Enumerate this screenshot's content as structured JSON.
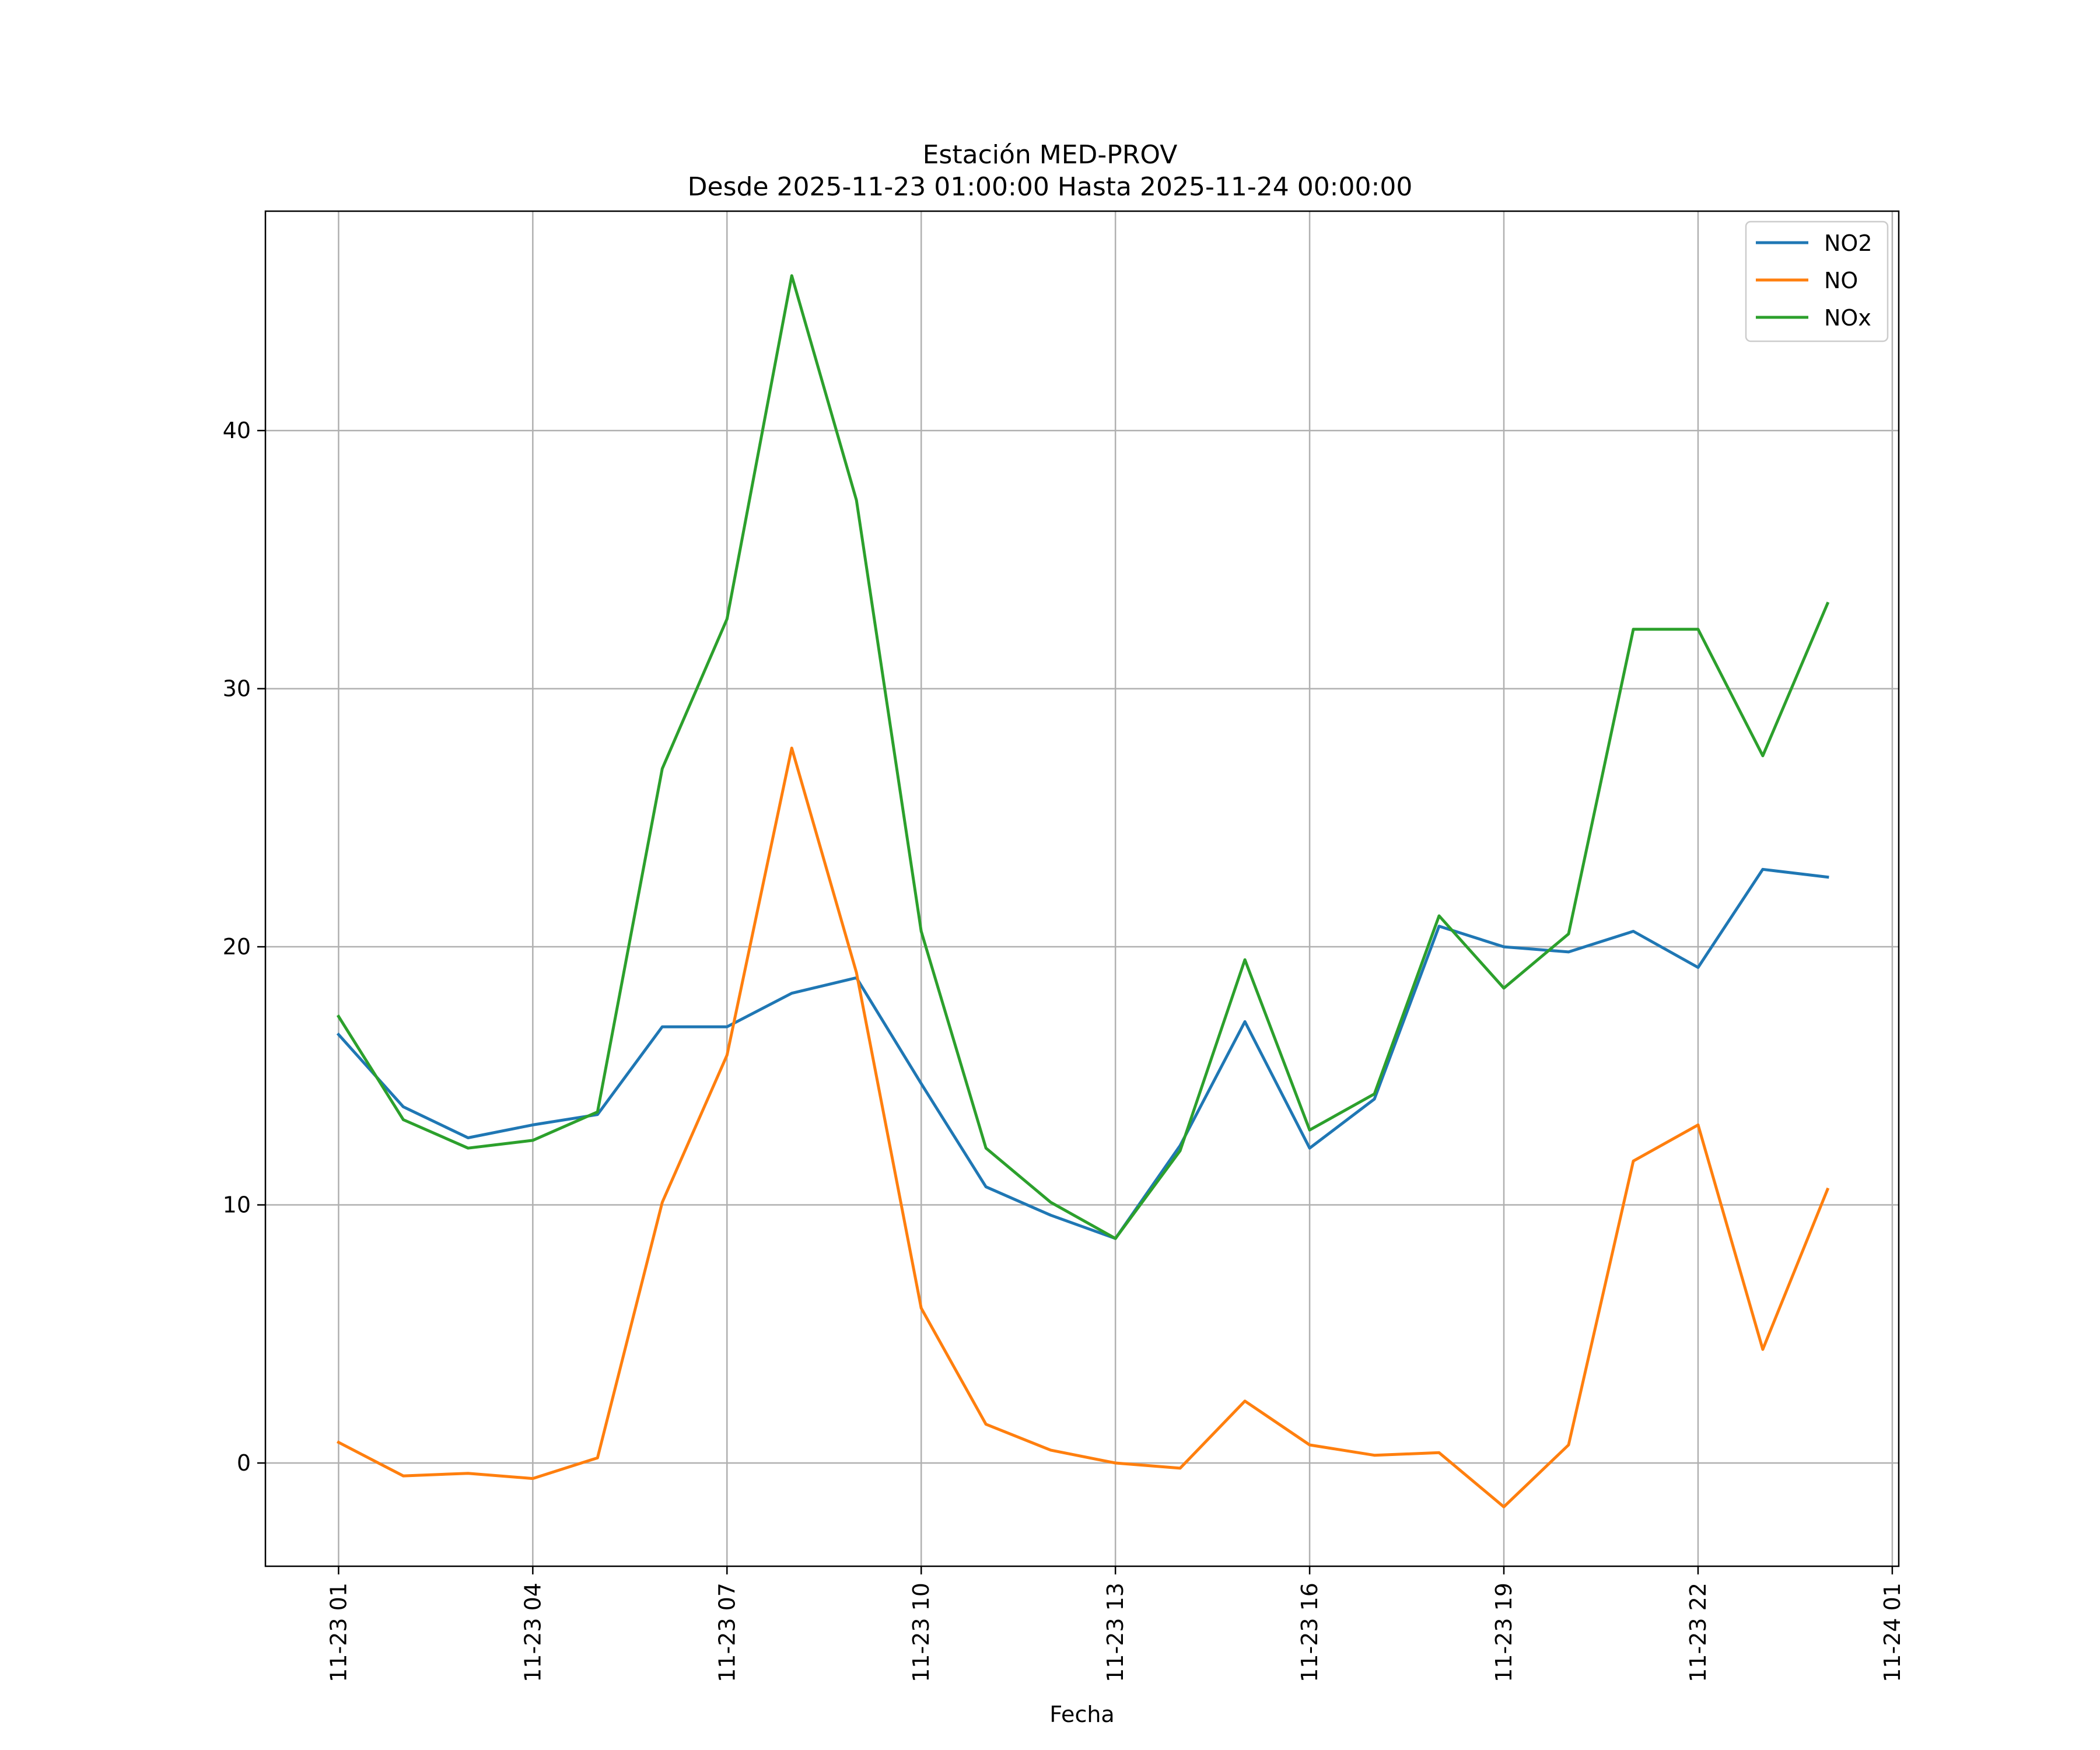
{
  "chart_data": {
    "type": "line",
    "title": "Estación MED-PROV",
    "subtitle": "Desde 2025-11-23 01:00:00 Hasta 2025-11-24 00:00:00",
    "xlabel": "Fecha",
    "ylabel": "",
    "x_hours": [
      1,
      2,
      3,
      4,
      5,
      6,
      7,
      8,
      9,
      10,
      11,
      12,
      13,
      14,
      15,
      16,
      17,
      18,
      19,
      20,
      21,
      22,
      23,
      24
    ],
    "xlim_hours": [
      -0.13,
      25.1
    ],
    "ylim": [
      -4,
      48.5
    ],
    "xticks": [
      {
        "hour": 1,
        "label": "11-23 01"
      },
      {
        "hour": 4,
        "label": "11-23 04"
      },
      {
        "hour": 7,
        "label": "11-23 07"
      },
      {
        "hour": 10,
        "label": "11-23 10"
      },
      {
        "hour": 13,
        "label": "11-23 13"
      },
      {
        "hour": 16,
        "label": "11-23 16"
      },
      {
        "hour": 19,
        "label": "11-23 19"
      },
      {
        "hour": 22,
        "label": "11-23 22"
      },
      {
        "hour": 25,
        "label": "11-24 01"
      }
    ],
    "yticks": [
      0,
      10,
      20,
      30,
      40
    ],
    "grid": true,
    "legend_position": "top-right",
    "series": [
      {
        "name": "NO2",
        "color": "#1f77b4",
        "values": [
          16.6,
          13.8,
          12.6,
          13.1,
          13.5,
          16.9,
          16.9,
          18.2,
          18.8,
          14.7,
          10.7,
          9.6,
          8.7,
          12.3,
          17.1,
          12.2,
          14.1,
          20.8,
          20.0,
          19.8,
          20.6,
          19.2,
          23.0,
          22.7
        ]
      },
      {
        "name": "NO",
        "color": "#ff7f0e",
        "values": [
          0.8,
          -0.5,
          -0.4,
          -0.6,
          0.2,
          10.1,
          15.8,
          27.7,
          19.0,
          6.0,
          1.5,
          0.5,
          0.0,
          -0.2,
          2.4,
          0.7,
          0.3,
          0.4,
          -1.7,
          0.7,
          11.7,
          13.1,
          4.4,
          10.6
        ]
      },
      {
        "name": "NOx",
        "color": "#2ca02c",
        "values": [
          17.3,
          13.3,
          12.2,
          12.5,
          13.6,
          26.9,
          32.7,
          46.0,
          37.3,
          20.6,
          12.2,
          10.1,
          8.7,
          12.1,
          19.5,
          12.9,
          14.3,
          21.2,
          18.4,
          20.5,
          32.3,
          32.3,
          27.4,
          33.3
        ]
      }
    ]
  }
}
